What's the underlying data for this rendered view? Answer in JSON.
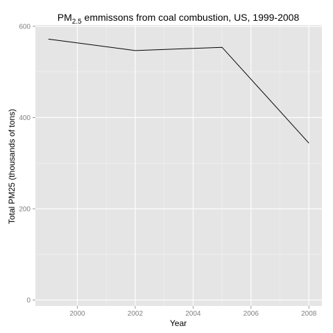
{
  "colors": {
    "panel_background": "#e5e5e5",
    "grid_major": "#ffffff",
    "grid_minor": "#f2f2f2",
    "line": "#000000",
    "tick_text": "#7f7f7f"
  },
  "chart_data": {
    "type": "line",
    "title": {
      "prefix": "PM",
      "subscript": "2.5",
      "rest": " emmissons from coal combustion, US, 1999-2008"
    },
    "xlabel": "Year",
    "ylabel": "Total PM25 (thousands of tons)",
    "x": [
      1999,
      2002,
      2005,
      2008
    ],
    "series": [
      {
        "values": [
          572,
          547,
          554,
          344
        ]
      }
    ],
    "xlim": [
      1998.55,
      2008.45
    ],
    "ylim": [
      -13,
      603
    ],
    "x_ticks": [
      2000,
      2002,
      2004,
      2006,
      2008
    ],
    "y_ticks": [
      0,
      200,
      400,
      600
    ],
    "x_tick_labels": [
      "2000",
      "2002",
      "2004",
      "2006",
      "2008"
    ],
    "y_tick_labels": [
      "0",
      "200",
      "400",
      "600"
    ],
    "grid": true,
    "legend": "none"
  }
}
